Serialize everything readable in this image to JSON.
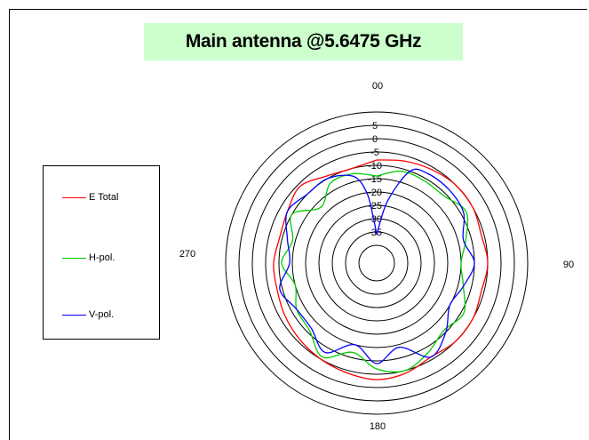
{
  "chart_data": {
    "type": "polar-line",
    "title": "Main antenna @5.6475 GHz",
    "angle_labels": {
      "top": "00",
      "right": "90",
      "bottom": "180",
      "left": "270"
    },
    "radial_ticks": [
      "5",
      "0",
      "-5",
      "-10",
      "-15",
      "-20",
      "-25",
      "-30",
      "-35"
    ],
    "radial_range": [
      -40,
      10
    ],
    "series": [
      {
        "name": "E Total",
        "color": "#ff0000",
        "angles": [
          0,
          15,
          30,
          45,
          60,
          75,
          90,
          105,
          120,
          135,
          150,
          165,
          180,
          195,
          210,
          225,
          240,
          255,
          270,
          285,
          300,
          315,
          330,
          345,
          360
        ],
        "values": [
          -8,
          -7,
          -6,
          -5,
          -5,
          -6,
          -5,
          -6,
          -5,
          -5,
          -6,
          -4,
          -3,
          -4,
          -5,
          -6,
          -7,
          -8,
          -8,
          -9,
          -8,
          -6,
          -9,
          -10,
          -8
        ]
      },
      {
        "name": "H-pol.",
        "color": "#00cc00",
        "angles": [
          0,
          15,
          30,
          45,
          60,
          75,
          90,
          105,
          120,
          135,
          150,
          165,
          180,
          195,
          210,
          225,
          240,
          255,
          270,
          285,
          300,
          315,
          330,
          345,
          360
        ],
        "values": [
          -14,
          -11,
          -11,
          -11,
          -8,
          -12,
          -15,
          -13,
          -9,
          -11,
          -8,
          -5,
          -7,
          -12,
          -6,
          -11,
          -12,
          -15,
          -11,
          -14,
          -10,
          -17,
          -12,
          -12,
          -14
        ]
      },
      {
        "name": "V-pol.",
        "color": "#0000ff",
        "angles": [
          0,
          10,
          20,
          30,
          45,
          60,
          75,
          90,
          105,
          120,
          135,
          150,
          165,
          180,
          195,
          210,
          225,
          240,
          255,
          270,
          285,
          300,
          315,
          330,
          345,
          352,
          356,
          360
        ],
        "values": [
          -36,
          -23,
          -10,
          -8,
          -8,
          -9,
          -13,
          -10,
          -13,
          -15,
          -10,
          -6,
          -14,
          -9,
          -15,
          -8,
          -12,
          -12,
          -9,
          -14,
          -12,
          -8,
          -10,
          -10,
          -13,
          -20,
          -30,
          -36
        ]
      }
    ]
  }
}
